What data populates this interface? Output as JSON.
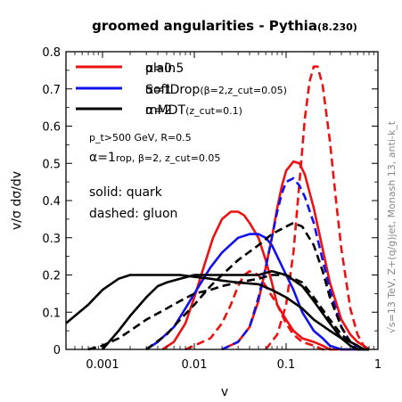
{
  "chart_data": {
    "type": "line",
    "title": "groomed angularities - Pythia",
    "title_version": "(8.230)",
    "xlabel": "v",
    "ylabel": "v/σ dσ/dv",
    "xscale": "log",
    "xlim": [
      0.0004,
      1
    ],
    "ylim": [
      0,
      0.8
    ],
    "xticks": [
      {
        "value": 0.001,
        "label": "0.001"
      },
      {
        "value": 0.01,
        "label": "0.01"
      },
      {
        "value": 0.1,
        "label": "0.1"
      },
      {
        "value": 1,
        "label": "1"
      }
    ],
    "yticks": [
      {
        "value": 0,
        "label": "0"
      },
      {
        "value": 0.1,
        "label": "0.1"
      },
      {
        "value": 0.2,
        "label": "0.2"
      },
      {
        "value": 0.3,
        "label": "0.3"
      },
      {
        "value": 0.4,
        "label": "0.4"
      },
      {
        "value": 0.5,
        "label": "0.5"
      },
      {
        "value": 0.6,
        "label": "0.6"
      },
      {
        "value": 0.7,
        "label": "0.7"
      },
      {
        "value": 0.8,
        "label": "0.8"
      }
    ],
    "legend": {
      "placement": "top-left",
      "entries": [
        {
          "color": "#ee1111",
          "text_a": "α=0.5",
          "text_b": "plain"
        },
        {
          "color": "#1111ee",
          "text_a": "SoftDrop",
          "text_b": "α=1",
          "sub": "(β=2,z_cut=0.05)"
        },
        {
          "color": "#000000",
          "text_a": "α=2",
          "text_b": "mMDT",
          "sub": "(z_cut=0.1)"
        }
      ]
    },
    "annotations": {
      "params_line1": "p_t>500 GeV, R=0.5",
      "params_line2_a": "α=1",
      "params_line2_b": "rop, β=2, z_cut=0.05",
      "solid_label": "solid: quark",
      "dashed_label": "dashed: gluon",
      "side_label": "√s=13 TeV, Z+(q/g)jet, Monash 13, anti-k_t"
    },
    "series": [
      {
        "color": "#ee1111",
        "dash": false,
        "x": [
          0.0045,
          0.006,
          0.008,
          0.01,
          0.013,
          0.016,
          0.02,
          0.025,
          0.03,
          0.035,
          0.04,
          0.05,
          0.06,
          0.07,
          0.08,
          0.1,
          0.12,
          0.15,
          0.2,
          0.25,
          0.3,
          0.4,
          0.5,
          0.6,
          0.7,
          0.8
        ],
        "y": [
          0,
          0.02,
          0.07,
          0.14,
          0.23,
          0.3,
          0.35,
          0.37,
          0.37,
          0.36,
          0.34,
          0.3,
          0.24,
          0.18,
          0.12,
          0.08,
          0.05,
          0.03,
          0.02,
          0.01,
          0,
          0,
          0,
          0,
          0,
          0
        ]
      },
      {
        "color": "#ee1111",
        "dash": false,
        "x": [
          0.02,
          0.03,
          0.04,
          0.05,
          0.06,
          0.07,
          0.08,
          0.09,
          0.1,
          0.12,
          0.14,
          0.16,
          0.2,
          0.25,
          0.3,
          0.4,
          0.5,
          0.6,
          0.7,
          0.8
        ],
        "y": [
          0,
          0.02,
          0.06,
          0.13,
          0.22,
          0.3,
          0.38,
          0.44,
          0.48,
          0.505,
          0.5,
          0.47,
          0.38,
          0.27,
          0.18,
          0.08,
          0.04,
          0.02,
          0.01,
          0
        ]
      },
      {
        "color": "#ee1111",
        "dash": true,
        "x": [
          0.06,
          0.08,
          0.1,
          0.12,
          0.14,
          0.16,
          0.18,
          0.2,
          0.22,
          0.25,
          0.3,
          0.35,
          0.4,
          0.5,
          0.6,
          0.7,
          0.8
        ],
        "y": [
          0,
          0.04,
          0.12,
          0.26,
          0.45,
          0.62,
          0.72,
          0.76,
          0.76,
          0.71,
          0.56,
          0.4,
          0.27,
          0.11,
          0.04,
          0.01,
          0
        ]
      },
      {
        "color": "#ee1111",
        "dash": true,
        "x": [
          0.008,
          0.01,
          0.015,
          0.02,
          0.025,
          0.03,
          0.035,
          0.04,
          0.05,
          0.06,
          0.08,
          0.1,
          0.12,
          0.15,
          0.2,
          0.25,
          0.3,
          0.4,
          0.5
        ],
        "y": [
          0,
          0.01,
          0.03,
          0.07,
          0.12,
          0.17,
          0.2,
          0.21,
          0.2,
          0.17,
          0.12,
          0.07,
          0.04,
          0.02,
          0.01,
          0,
          0,
          0,
          0
        ]
      },
      {
        "color": "#1111ee",
        "dash": false,
        "x": [
          0.003,
          0.004,
          0.006,
          0.008,
          0.01,
          0.015,
          0.02,
          0.03,
          0.04,
          0.05,
          0.06,
          0.07,
          0.08,
          0.1,
          0.12,
          0.15,
          0.2,
          0.25,
          0.3,
          0.4,
          0.5,
          0.6,
          0.7
        ],
        "y": [
          0,
          0.02,
          0.06,
          0.11,
          0.15,
          0.22,
          0.26,
          0.3,
          0.31,
          0.31,
          0.3,
          0.28,
          0.25,
          0.2,
          0.16,
          0.1,
          0.05,
          0.03,
          0.01,
          0,
          0,
          0,
          0
        ]
      },
      {
        "color": "#1111ee",
        "dash": true,
        "x": [
          0.02,
          0.03,
          0.04,
          0.05,
          0.06,
          0.07,
          0.08,
          0.09,
          0.1,
          0.12,
          0.14,
          0.16,
          0.2,
          0.25,
          0.3,
          0.4,
          0.5,
          0.6,
          0.7
        ],
        "y": [
          0,
          0.02,
          0.06,
          0.14,
          0.22,
          0.3,
          0.37,
          0.42,
          0.45,
          0.46,
          0.44,
          0.41,
          0.34,
          0.24,
          0.16,
          0.06,
          0.02,
          0,
          0
        ]
      },
      {
        "color": "#000000",
        "dash": false,
        "x": [
          0.0004,
          0.0005,
          0.0007,
          0.001,
          0.0015,
          0.002,
          0.003,
          0.004,
          0.005,
          0.007,
          0.01,
          0.015,
          0.02,
          0.03,
          0.05,
          0.07,
          0.1,
          0.15,
          0.2,
          0.3,
          0.4,
          0.5,
          0.6,
          0.7,
          0.8
        ],
        "y": [
          0.07,
          0.09,
          0.12,
          0.16,
          0.19,
          0.2,
          0.2,
          0.2,
          0.2,
          0.2,
          0.195,
          0.19,
          0.185,
          0.18,
          0.175,
          0.16,
          0.14,
          0.11,
          0.08,
          0.05,
          0.03,
          0.02,
          0.01,
          0,
          0
        ]
      },
      {
        "color": "#000000",
        "dash": false,
        "x": [
          0.001,
          0.0015,
          0.002,
          0.003,
          0.004,
          0.005,
          0.007,
          0.01,
          0.015,
          0.02,
          0.03,
          0.05,
          0.07,
          0.1,
          0.15,
          0.2,
          0.3,
          0.4,
          0.5,
          0.6,
          0.7,
          0.8
        ],
        "y": [
          0,
          0.05,
          0.09,
          0.14,
          0.17,
          0.18,
          0.19,
          0.2,
          0.2,
          0.2,
          0.2,
          0.2,
          0.21,
          0.2,
          0.17,
          0.13,
          0.07,
          0.03,
          0.01,
          0,
          0,
          0
        ]
      },
      {
        "color": "#000000",
        "dash": true,
        "x": [
          0.0007,
          0.001,
          0.0015,
          0.002,
          0.003,
          0.005,
          0.007,
          0.01,
          0.015,
          0.02,
          0.03,
          0.05,
          0.07,
          0.1,
          0.15,
          0.2,
          0.3,
          0.4,
          0.5,
          0.6,
          0.7,
          0.8
        ],
        "y": [
          0,
          0.01,
          0.03,
          0.05,
          0.08,
          0.11,
          0.13,
          0.15,
          0.16,
          0.17,
          0.18,
          0.19,
          0.2,
          0.2,
          0.18,
          0.14,
          0.08,
          0.04,
          0.02,
          0.01,
          0,
          0
        ]
      },
      {
        "color": "#000000",
        "dash": true,
        "x": [
          0.003,
          0.005,
          0.007,
          0.01,
          0.015,
          0.02,
          0.03,
          0.05,
          0.07,
          0.1,
          0.12,
          0.15,
          0.2,
          0.25,
          0.3,
          0.4,
          0.5,
          0.6,
          0.7,
          0.8
        ],
        "y": [
          0,
          0.04,
          0.08,
          0.12,
          0.17,
          0.2,
          0.24,
          0.28,
          0.31,
          0.33,
          0.34,
          0.33,
          0.28,
          0.21,
          0.14,
          0.06,
          0.02,
          0.01,
          0,
          0
        ]
      }
    ]
  }
}
